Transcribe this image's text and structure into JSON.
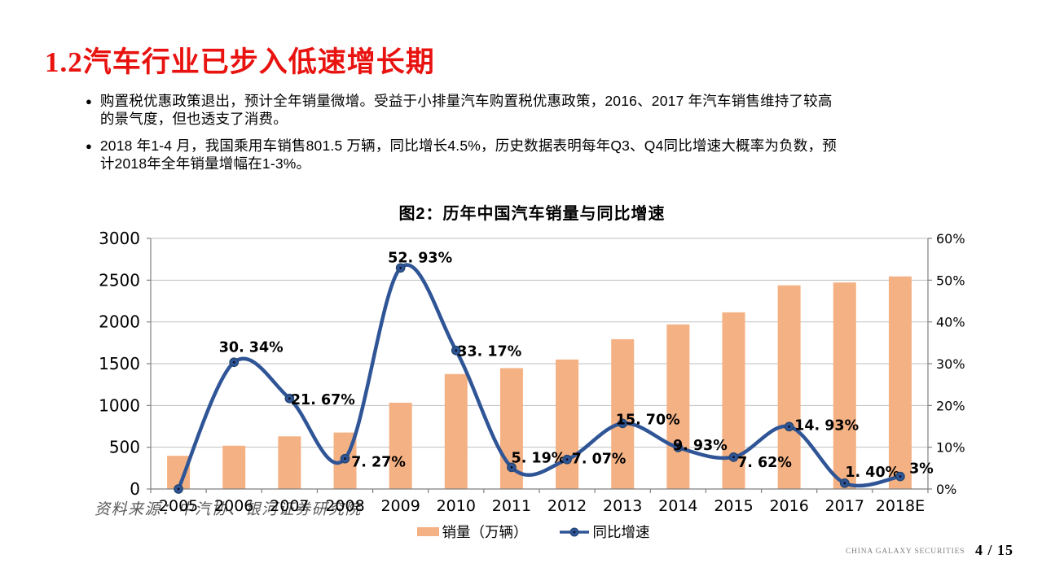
{
  "slide": {
    "title": "1.2汽车行业已步入低速增长期",
    "bullets": [
      "购置税优惠政策退出，预计全年销量微增。受益于小排量汽车购置税优惠政策，2016、2017 年汽车销售维持了较高\n的景气度，但也透支了消费。",
      "2018 年1-4 月，我国乘用车销售801.5 万辆，同比增长4.5%，历史数据表明每年Q3、Q4同比增速大概率为负数，预\n计2018年全年销量增幅在1-3%。"
    ],
    "bullet_marker": "●",
    "source_note": "资料来源：中汽协、银河证券研究院",
    "footer_brand": "CHINA GALAXY SECURITIES",
    "page_number": "4 / 15"
  },
  "chart_data": {
    "type": "bar",
    "combo": "bar+line",
    "title": "图2：历年中国汽车销量与同比增速",
    "categories": [
      "2005",
      "2006",
      "2007",
      "2008",
      "2009",
      "2010",
      "2011",
      "2012",
      "2013",
      "2014",
      "2015",
      "2016",
      "2017",
      "2018E"
    ],
    "series": [
      {
        "name": "销量（万辆）",
        "type": "bar",
        "axis": "left",
        "color": "#f4b183",
        "values": [
          397,
          518,
          630,
          676,
          1033,
          1376,
          1447,
          1550,
          1793,
          1970,
          2115,
          2438,
          2472,
          2545
        ]
      },
      {
        "name": "同比增速",
        "type": "line",
        "axis": "right",
        "color": "#2f5597",
        "marker_stroke": "#24466e",
        "values": [
          0,
          30.34,
          21.67,
          7.27,
          52.93,
          33.17,
          5.19,
          7.07,
          15.7,
          9.93,
          7.62,
          14.93,
          1.4,
          3
        ],
        "labels": [
          "",
          "30. 34%",
          "21. 67%",
          "7. 27%",
          "52. 93%",
          "33. 17%",
          "5. 19%",
          "7. 07%",
          "15. 70%",
          "9. 93%",
          "7. 62%",
          "14. 93%",
          "1. 40%",
          "3%"
        ],
        "label_offsets": [
          [
            0,
            0
          ],
          [
            21,
            -19
          ],
          [
            41,
            1
          ],
          [
            41,
            4
          ],
          [
            24,
            -13
          ],
          [
            41,
            1
          ],
          [
            33,
            -12
          ],
          [
            39,
            -1
          ],
          [
            31,
            -5
          ],
          [
            27,
            -3
          ],
          [
            38,
            6
          ],
          [
            46,
            -2
          ],
          [
            34,
            -14
          ],
          [
            26,
            -10
          ]
        ]
      }
    ],
    "left_axis": {
      "min": 0,
      "max": 3000,
      "step": 500,
      "ticks": [
        "0",
        "500",
        "1000",
        "1500",
        "2000",
        "2500",
        "3000"
      ]
    },
    "right_axis": {
      "min": 0,
      "max": 60,
      "step": 10,
      "ticks": [
        "0%",
        "10%",
        "20%",
        "30%",
        "40%",
        "50%",
        "60%"
      ]
    },
    "grid": true,
    "legend_position": "bottom",
    "colors": {
      "grid": "#bfbfbf",
      "axis": "#808080",
      "label": "#000000"
    }
  }
}
